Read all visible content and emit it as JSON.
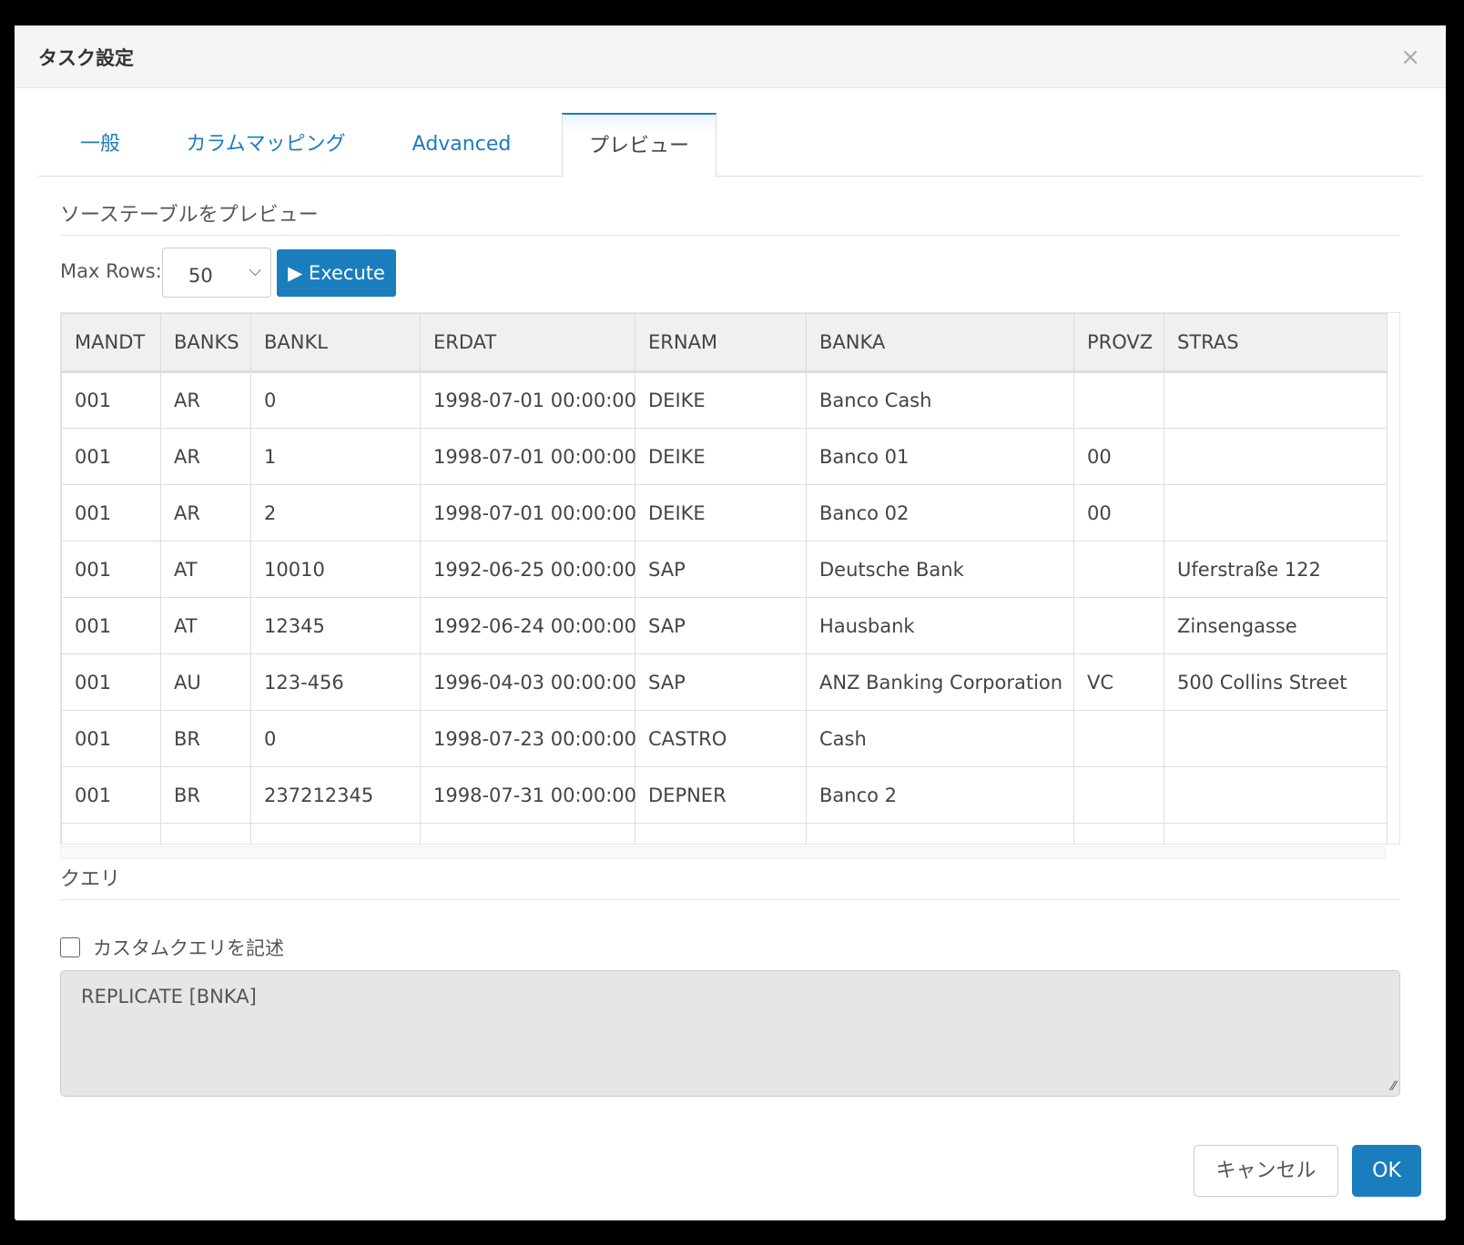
{
  "dialog": {
    "title": "タスク設定",
    "close_icon": "×"
  },
  "tabs": [
    {
      "label": "一般"
    },
    {
      "label": "カラムマッピング"
    },
    {
      "label": "Advanced"
    },
    {
      "label": "プレビュー",
      "active": true
    }
  ],
  "preview": {
    "section_title": "ソーステーブルをプレビュー",
    "max_rows_label": "Max Rows:",
    "max_rows_value": "50",
    "execute_label": "Execute",
    "columns": [
      "MANDT",
      "BANKS",
      "BANKL",
      "ERDAT",
      "ERNAM",
      "BANKA",
      "PROVZ",
      "STRAS"
    ],
    "rows": [
      [
        "001",
        "AR",
        "0",
        "1998-07-01 00:00:00",
        "DEIKE",
        "Banco Cash",
        "",
        ""
      ],
      [
        "001",
        "AR",
        "1",
        "1998-07-01 00:00:00",
        "DEIKE",
        "Banco 01",
        "00",
        ""
      ],
      [
        "001",
        "AR",
        "2",
        "1998-07-01 00:00:00",
        "DEIKE",
        "Banco 02",
        "00",
        ""
      ],
      [
        "001",
        "AT",
        "10010",
        "1992-06-25 00:00:00",
        "SAP",
        "Deutsche Bank",
        "",
        "Uferstraße 122"
      ],
      [
        "001",
        "AT",
        "12345",
        "1992-06-24 00:00:00",
        "SAP",
        "Hausbank",
        "",
        "Zinsengasse"
      ],
      [
        "001",
        "AU",
        "123-456",
        "1996-04-03 00:00:00",
        "SAP",
        "ANZ Banking Corporation",
        "VC",
        "500 Collins Street"
      ],
      [
        "001",
        "BR",
        "0",
        "1998-07-23 00:00:00",
        "CASTRO",
        "Cash",
        "",
        ""
      ],
      [
        "001",
        "BR",
        "237212345",
        "1998-07-31 00:00:00",
        "DEPNER",
        "Banco 2",
        "",
        ""
      ],
      [
        "",
        "",
        "",
        "",
        "",
        "",
        "",
        ""
      ]
    ]
  },
  "query": {
    "section_title": "クエリ",
    "custom_query_label": "カスタムクエリを記述",
    "custom_query_checked": false,
    "query_text": "REPLICATE [BNKA]"
  },
  "footer": {
    "cancel_label": "キャンセル",
    "ok_label": "OK"
  },
  "colors": {
    "accent": "#1a7dbd"
  }
}
